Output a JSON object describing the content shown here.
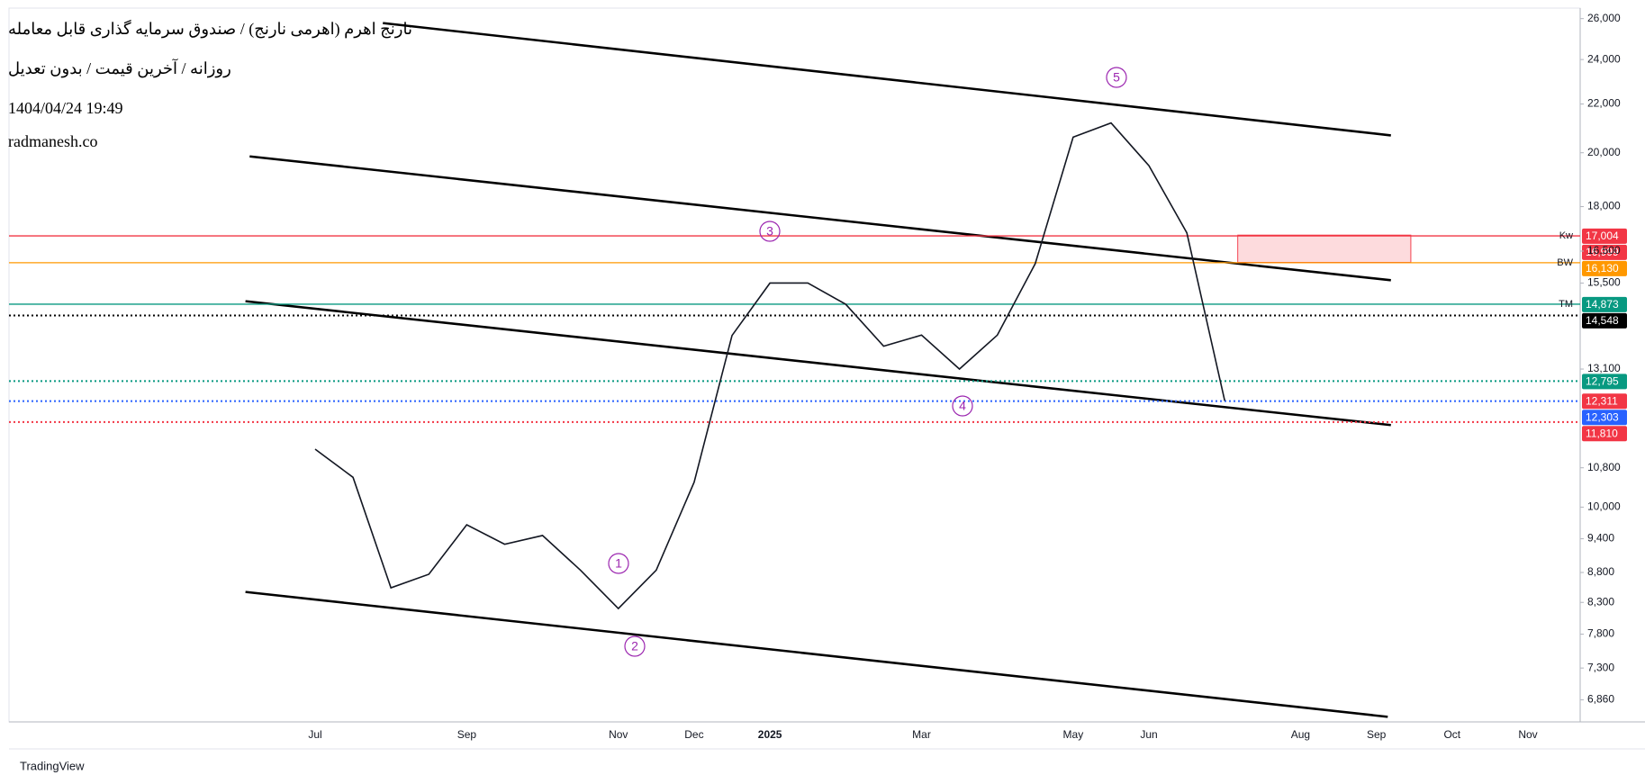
{
  "header": {
    "title": "نارنج اهرم (اهرمی نارنج) / صندوق سرمایه گذاری قابل معامله",
    "subtitle": "روزانه / آخرین قیمت / بدون تعدیل",
    "timestamp": "1404/04/24 19:49",
    "watermark": "radmanesh.co"
  },
  "footer": {
    "brand": "TradingView"
  },
  "chart_data": {
    "type": "line",
    "log_scale": true,
    "categories": [
      "Jul",
      null,
      null,
      null,
      "Sep",
      null,
      null,
      null,
      "Nov",
      null,
      "Dec",
      null,
      "2025",
      null,
      null,
      null,
      "Mar",
      null,
      null,
      null,
      "May",
      null,
      "Jun",
      null,
      null,
      null,
      "Aug",
      null,
      "Sep",
      null,
      "Oct",
      null,
      "Nov"
    ],
    "series": [
      {
        "name": "Close",
        "color": "#131722",
        "values": [
          11200,
          10600,
          8540,
          8770,
          9660,
          9300,
          9460,
          8840,
          8200,
          8840,
          10500,
          13990,
          15500,
          15500,
          14870,
          13700,
          14000,
          13100,
          14000,
          16100,
          20620,
          21200,
          19500,
          17100,
          12311,
          null,
          null,
          null,
          null,
          null,
          null,
          null,
          null
        ]
      }
    ],
    "ylim": [
      6570,
      26540
    ],
    "yticks": [
      {
        "value": 26000,
        "label": "26,000"
      },
      {
        "value": 24000,
        "label": "24,000"
      },
      {
        "value": 22000,
        "label": "22,000"
      },
      {
        "value": 20000,
        "label": "20,000"
      },
      {
        "value": 18000,
        "label": "18,000"
      },
      {
        "value": 16500,
        "label": "16,500"
      },
      {
        "value": 15500,
        "label": "15,500"
      },
      {
        "value": 13100,
        "label": "13,100"
      },
      {
        "value": 10800,
        "label": "10,800"
      },
      {
        "value": 10000,
        "label": "10,000"
      },
      {
        "value": 9400,
        "label": "9,400"
      },
      {
        "value": 8800,
        "label": "8,800"
      },
      {
        "value": 8300,
        "label": "8,300"
      },
      {
        "value": 7800,
        "label": "7,800"
      },
      {
        "value": 7300,
        "label": "7,300"
      },
      {
        "value": 6860,
        "label": "6,860"
      }
    ],
    "levels": [
      {
        "value": 17004,
        "label": "17,004",
        "color": "#f23645",
        "style": "none"
      },
      {
        "value": 16999,
        "label": "16,999",
        "color": "#f23645",
        "style": "solid",
        "tag": "Kw"
      },
      {
        "value": 16130,
        "label": "16,130",
        "color": "#ff9800",
        "style": "solid",
        "tag": "BW"
      },
      {
        "value": 14873,
        "label": "14,873",
        "color": "#089981",
        "style": "solid",
        "tag": "TM"
      },
      {
        "value": 14548,
        "label": "14,548",
        "color": "#000000",
        "style": "dotted"
      },
      {
        "value": 12795,
        "label": "12,795",
        "color": "#089981",
        "style": "dotted"
      },
      {
        "value": 12311,
        "label": "12,311",
        "color": "#f23645",
        "style": "none"
      },
      {
        "value": 12303,
        "label": "12,303",
        "color": "#2962ff",
        "style": "dotted"
      },
      {
        "value": 11810,
        "label": "11,810",
        "color": "#f23645",
        "style": "dotted"
      }
    ],
    "waves": [
      "1",
      "2",
      "3",
      "4",
      "5"
    ]
  }
}
